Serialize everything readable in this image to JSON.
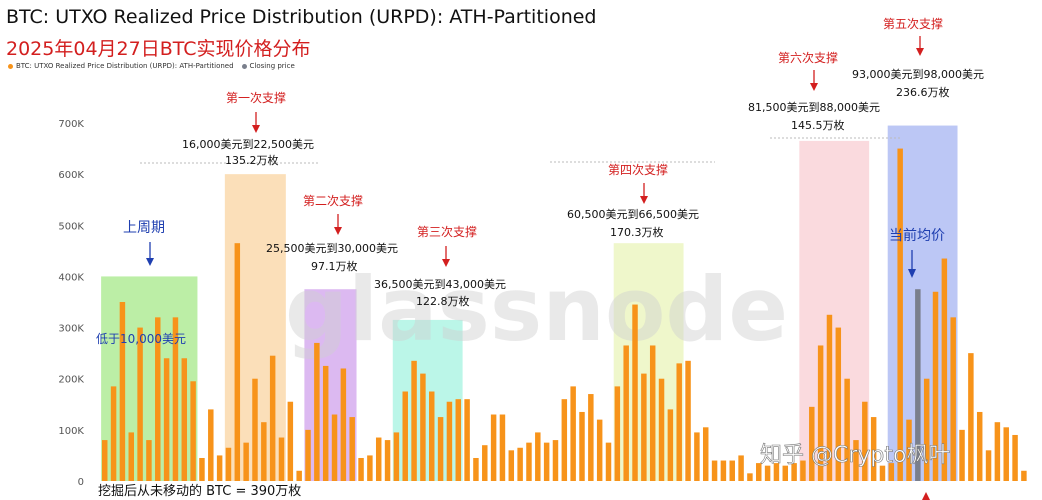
{
  "chart_data": {
    "type": "bar",
    "title": "BTC: UTXO Realized Price Distribution (URPD): ATH-Partitioned",
    "subtitle": "2025年04月27日BTC实现价格分布",
    "legend": [
      {
        "label": "BTC: UTXO Realized Price Distribution (URPD): ATH-Partitioned",
        "color": "#f7931a"
      },
      {
        "label": "Closing price",
        "color": "#7a7f8c"
      }
    ],
    "yticks": [
      "0",
      "100K",
      "200K",
      "300K",
      "400K",
      "500K",
      "600K",
      "700K"
    ],
    "ylim": [
      0,
      700000
    ],
    "grid": false,
    "values": [
      80000,
      185000,
      350000,
      95000,
      300000,
      80000,
      320000,
      240000,
      320000,
      240000,
      195000,
      45000,
      140000,
      50000,
      65000,
      465000,
      75000,
      200000,
      115000,
      245000,
      85000,
      155000,
      20000,
      100000,
      270000,
      225000,
      130000,
      220000,
      125000,
      45000,
      50000,
      85000,
      80000,
      95000,
      175000,
      235000,
      210000,
      175000,
      125000,
      155000,
      160000,
      160000,
      45000,
      70000,
      130000,
      130000,
      60000,
      65000,
      75000,
      95000,
      75000,
      80000,
      160000,
      185000,
      135000,
      170000,
      120000,
      75000,
      185000,
      265000,
      345000,
      210000,
      265000,
      200000,
      140000,
      230000,
      235000,
      95000,
      105000,
      40000,
      40000,
      40000,
      50000,
      15000,
      35000,
      30000,
      35000,
      30000,
      35000,
      40000,
      145000,
      265000,
      325000,
      300000,
      200000,
      80000,
      155000,
      125000,
      30000,
      35000,
      650000,
      120000,
      375000,
      200000,
      370000,
      435000,
      320000,
      100000,
      250000,
      135000,
      60000,
      115000,
      105000,
      90000,
      20000
    ],
    "closing_price_index": 92,
    "closing_price_color": "#7a7f8c",
    "bar_color": "#f7931a"
  },
  "zones": [
    {
      "name": "上周期",
      "color": "#8fe36b",
      "start": 0,
      "end": 10,
      "top": 400000
    },
    {
      "name": "第一次支撑",
      "color": "#f9c98a",
      "start": 14,
      "end": 20,
      "top": 600000
    },
    {
      "name": "第二次支撑",
      "color": "#c48be8",
      "start": 23,
      "end": 28,
      "top": 375000
    },
    {
      "name": "第三次支撑",
      "color": "#8ef0d8",
      "start": 33,
      "end": 40,
      "top": 315000
    },
    {
      "name": "第四次支撑",
      "color": "#e5f2a8",
      "start": 58,
      "end": 65,
      "top": 465000
    },
    {
      "name": "第六次支撑",
      "color": "#f7c2c8",
      "start": 79,
      "end": 86,
      "top": 665000
    },
    {
      "name": "第五次支撑",
      "color": "#8fa2ee",
      "start": 89,
      "end": 96,
      "top": 695000
    }
  ],
  "annotations": {
    "prev_cycle": "上周期",
    "below_10k": "低于10,000美元",
    "s1_title": "第一次支撑",
    "s1_range": "16,000美元到22,500美元",
    "s1_amount": "135.2万枚",
    "s2_title": "第二次支撑",
    "s2_range": "25,500美元到30,000美元",
    "s2_amount": "97.1万枚",
    "s3_title": "第三次支撑",
    "s3_range": "36,500美元到43,000美元",
    "s3_amount": "122.8万枚",
    "s4_title": "第四次支撑",
    "s4_range": "60,500美元到66,500美元",
    "s4_amount": "170.3万枚",
    "s6_title": "第六次支撑",
    "s6_range": "81,500美元到88,000美元",
    "s6_amount": "145.5万枚",
    "s5_title": "第五次支撑",
    "s5_range": "93,000美元到98,000美元",
    "s5_amount": "236.6万枚",
    "avg_price": "当前均价",
    "footer": "挖掘后从未移动的 BTC = 390万枚"
  },
  "watermark": "glassnode",
  "source_watermark": "知乎 @Crypto枫叶"
}
